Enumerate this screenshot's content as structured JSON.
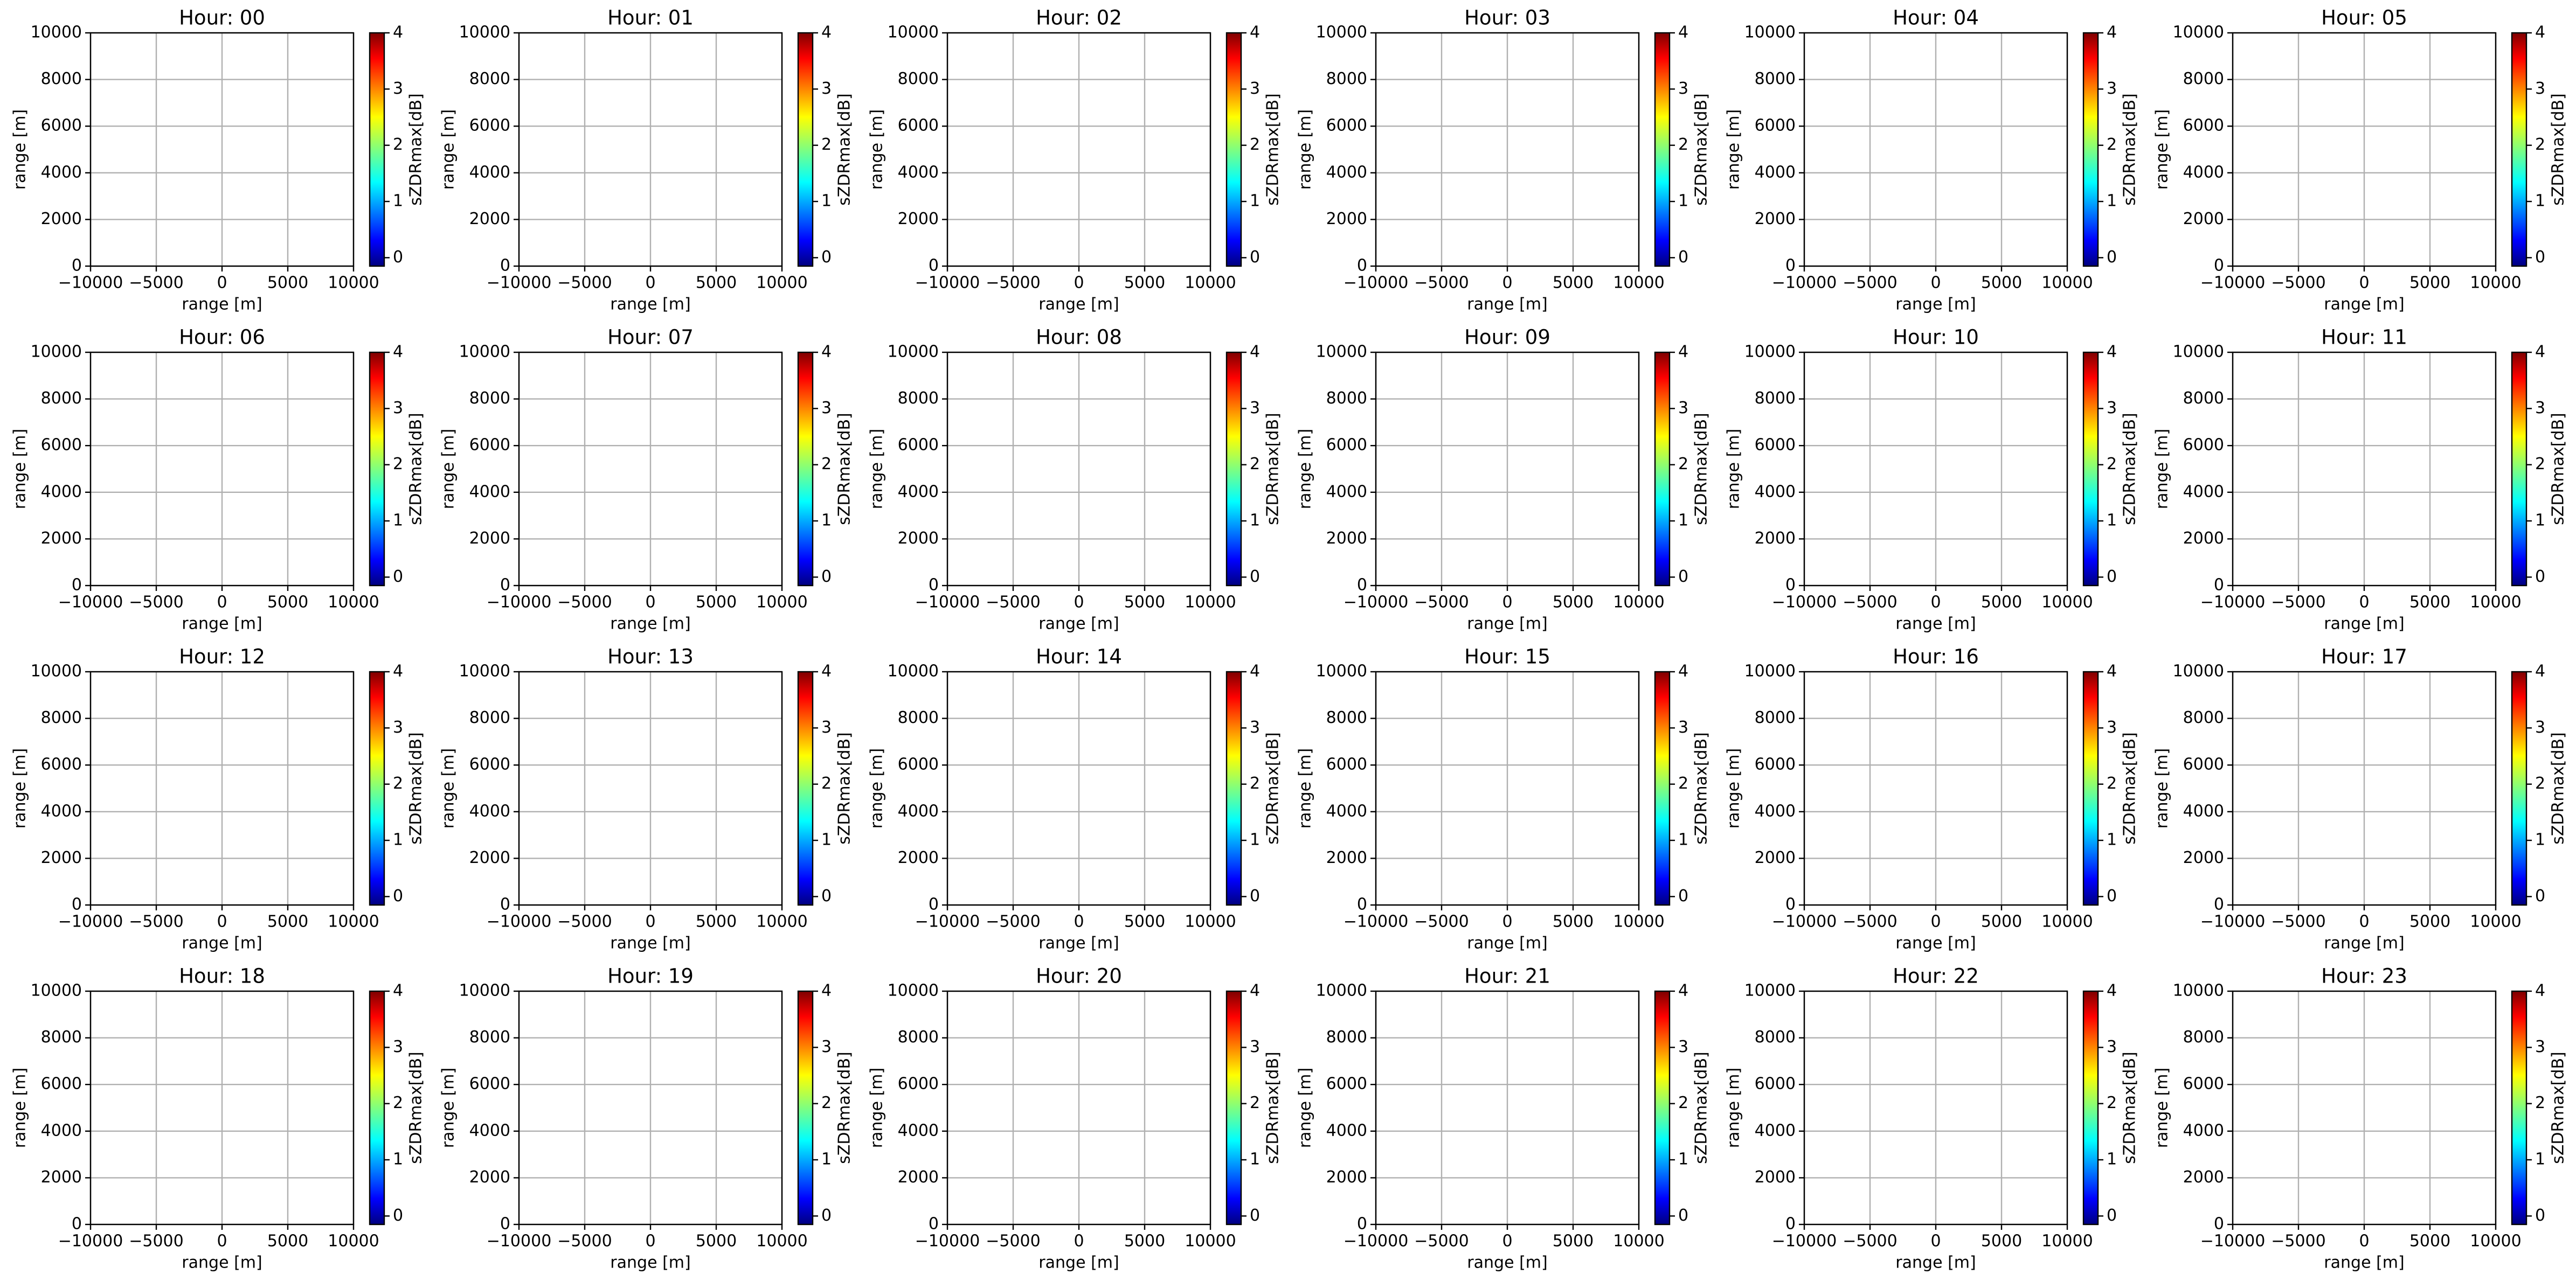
{
  "chart_data": [
    {
      "type": "heatmap",
      "title": "Hour: 00",
      "xlabel": "range [m]",
      "ylabel": "range [m]",
      "xlim": [
        -10000,
        10000
      ],
      "ylim": [
        0,
        10000
      ],
      "xticks": [
        {
          "value": -10000,
          "label": "−10000"
        },
        {
          "value": -5000,
          "label": "−5000"
        },
        0,
        5000,
        10000
      ],
      "yticks": [
        0,
        2000,
        4000,
        6000,
        8000,
        10000
      ],
      "grid": true,
      "colorbar": {
        "label": "sZDRmax[dB]",
        "lim": [
          -0.15,
          4
        ],
        "ticks": [
          0,
          1,
          2,
          3,
          4
        ],
        "colormap": "jet"
      }
    },
    {
      "type": "heatmap",
      "title": "Hour: 01",
      "xlabel": "range [m]",
      "ylabel": "range [m]",
      "xlim": [
        -10000,
        10000
      ],
      "ylim": [
        0,
        10000
      ],
      "xticks": [
        {
          "value": -10000,
          "label": "−10000"
        },
        {
          "value": -5000,
          "label": "−5000"
        },
        0,
        5000,
        10000
      ],
      "yticks": [
        0,
        2000,
        4000,
        6000,
        8000,
        10000
      ],
      "grid": true,
      "colorbar": {
        "label": "sZDRmax[dB]",
        "lim": [
          -0.15,
          4
        ],
        "ticks": [
          0,
          1,
          2,
          3,
          4
        ],
        "colormap": "jet"
      }
    },
    {
      "type": "heatmap",
      "title": "Hour: 02",
      "xlabel": "range [m]",
      "ylabel": "range [m]",
      "xlim": [
        -10000,
        10000
      ],
      "ylim": [
        0,
        10000
      ],
      "xticks": [
        {
          "value": -10000,
          "label": "−10000"
        },
        {
          "value": -5000,
          "label": "−5000"
        },
        0,
        5000,
        10000
      ],
      "yticks": [
        0,
        2000,
        4000,
        6000,
        8000,
        10000
      ],
      "grid": true,
      "colorbar": {
        "label": "sZDRmax[dB]",
        "lim": [
          -0.15,
          4
        ],
        "ticks": [
          0,
          1,
          2,
          3,
          4
        ],
        "colormap": "jet"
      }
    },
    {
      "type": "heatmap",
      "title": "Hour: 03",
      "xlabel": "range [m]",
      "ylabel": "range [m]",
      "xlim": [
        -10000,
        10000
      ],
      "ylim": [
        0,
        10000
      ],
      "xticks": [
        {
          "value": -10000,
          "label": "−10000"
        },
        {
          "value": -5000,
          "label": "−5000"
        },
        0,
        5000,
        10000
      ],
      "yticks": [
        0,
        2000,
        4000,
        6000,
        8000,
        10000
      ],
      "grid": true,
      "colorbar": {
        "label": "sZDRmax[dB]",
        "lim": [
          -0.15,
          4
        ],
        "ticks": [
          0,
          1,
          2,
          3,
          4
        ],
        "colormap": "jet"
      }
    },
    {
      "type": "heatmap",
      "title": "Hour: 04",
      "xlabel": "range [m]",
      "ylabel": "range [m]",
      "xlim": [
        -10000,
        10000
      ],
      "ylim": [
        0,
        10000
      ],
      "xticks": [
        {
          "value": -10000,
          "label": "−10000"
        },
        {
          "value": -5000,
          "label": "−5000"
        },
        0,
        5000,
        10000
      ],
      "yticks": [
        0,
        2000,
        4000,
        6000,
        8000,
        10000
      ],
      "grid": true,
      "colorbar": {
        "label": "sZDRmax[dB]",
        "lim": [
          -0.15,
          4
        ],
        "ticks": [
          0,
          1,
          2,
          3,
          4
        ],
        "colormap": "jet"
      }
    },
    {
      "type": "heatmap",
      "title": "Hour: 05",
      "xlabel": "range [m]",
      "ylabel": "range [m]",
      "xlim": [
        -10000,
        10000
      ],
      "ylim": [
        0,
        10000
      ],
      "xticks": [
        {
          "value": -10000,
          "label": "−10000"
        },
        {
          "value": -5000,
          "label": "−5000"
        },
        0,
        5000,
        10000
      ],
      "yticks": [
        0,
        2000,
        4000,
        6000,
        8000,
        10000
      ],
      "grid": true,
      "colorbar": {
        "label": "sZDRmax[dB]",
        "lim": [
          -0.15,
          4
        ],
        "ticks": [
          0,
          1,
          2,
          3,
          4
        ],
        "colormap": "jet"
      }
    },
    {
      "type": "heatmap",
      "title": "Hour: 06",
      "xlabel": "range [m]",
      "ylabel": "range [m]",
      "xlim": [
        -10000,
        10000
      ],
      "ylim": [
        0,
        10000
      ],
      "xticks": [
        {
          "value": -10000,
          "label": "−10000"
        },
        {
          "value": -5000,
          "label": "−5000"
        },
        0,
        5000,
        10000
      ],
      "yticks": [
        0,
        2000,
        4000,
        6000,
        8000,
        10000
      ],
      "grid": true,
      "colorbar": {
        "label": "sZDRmax[dB]",
        "lim": [
          -0.15,
          4
        ],
        "ticks": [
          0,
          1,
          2,
          3,
          4
        ],
        "colormap": "jet"
      }
    },
    {
      "type": "heatmap",
      "title": "Hour: 07",
      "xlabel": "range [m]",
      "ylabel": "range [m]",
      "xlim": [
        -10000,
        10000
      ],
      "ylim": [
        0,
        10000
      ],
      "xticks": [
        {
          "value": -10000,
          "label": "−10000"
        },
        {
          "value": -5000,
          "label": "−5000"
        },
        0,
        5000,
        10000
      ],
      "yticks": [
        0,
        2000,
        4000,
        6000,
        8000,
        10000
      ],
      "grid": true,
      "colorbar": {
        "label": "sZDRmax[dB]",
        "lim": [
          -0.15,
          4
        ],
        "ticks": [
          0,
          1,
          2,
          3,
          4
        ],
        "colormap": "jet"
      }
    },
    {
      "type": "heatmap",
      "title": "Hour: 08",
      "xlabel": "range [m]",
      "ylabel": "range [m]",
      "xlim": [
        -10000,
        10000
      ],
      "ylim": [
        0,
        10000
      ],
      "xticks": [
        {
          "value": -10000,
          "label": "−10000"
        },
        {
          "value": -5000,
          "label": "−5000"
        },
        0,
        5000,
        10000
      ],
      "yticks": [
        0,
        2000,
        4000,
        6000,
        8000,
        10000
      ],
      "grid": true,
      "colorbar": {
        "label": "sZDRmax[dB]",
        "lim": [
          -0.15,
          4
        ],
        "ticks": [
          0,
          1,
          2,
          3,
          4
        ],
        "colormap": "jet"
      }
    },
    {
      "type": "heatmap",
      "title": "Hour: 09",
      "xlabel": "range [m]",
      "ylabel": "range [m]",
      "xlim": [
        -10000,
        10000
      ],
      "ylim": [
        0,
        10000
      ],
      "xticks": [
        {
          "value": -10000,
          "label": "−10000"
        },
        {
          "value": -5000,
          "label": "−5000"
        },
        0,
        5000,
        10000
      ],
      "yticks": [
        0,
        2000,
        4000,
        6000,
        8000,
        10000
      ],
      "grid": true,
      "colorbar": {
        "label": "sZDRmax[dB]",
        "lim": [
          -0.15,
          4
        ],
        "ticks": [
          0,
          1,
          2,
          3,
          4
        ],
        "colormap": "jet"
      }
    },
    {
      "type": "heatmap",
      "title": "Hour: 10",
      "xlabel": "range [m]",
      "ylabel": "range [m]",
      "xlim": [
        -10000,
        10000
      ],
      "ylim": [
        0,
        10000
      ],
      "xticks": [
        {
          "value": -10000,
          "label": "−10000"
        },
        {
          "value": -5000,
          "label": "−5000"
        },
        0,
        5000,
        10000
      ],
      "yticks": [
        0,
        2000,
        4000,
        6000,
        8000,
        10000
      ],
      "grid": true,
      "colorbar": {
        "label": "sZDRmax[dB]",
        "lim": [
          -0.15,
          4
        ],
        "ticks": [
          0,
          1,
          2,
          3,
          4
        ],
        "colormap": "jet"
      }
    },
    {
      "type": "heatmap",
      "title": "Hour: 11",
      "xlabel": "range [m]",
      "ylabel": "range [m]",
      "xlim": [
        -10000,
        10000
      ],
      "ylim": [
        0,
        10000
      ],
      "xticks": [
        {
          "value": -10000,
          "label": "−10000"
        },
        {
          "value": -5000,
          "label": "−5000"
        },
        0,
        5000,
        10000
      ],
      "yticks": [
        0,
        2000,
        4000,
        6000,
        8000,
        10000
      ],
      "grid": true,
      "colorbar": {
        "label": "sZDRmax[dB]",
        "lim": [
          -0.15,
          4
        ],
        "ticks": [
          0,
          1,
          2,
          3,
          4
        ],
        "colormap": "jet"
      }
    },
    {
      "type": "heatmap",
      "title": "Hour: 12",
      "xlabel": "range [m]",
      "ylabel": "range [m]",
      "xlim": [
        -10000,
        10000
      ],
      "ylim": [
        0,
        10000
      ],
      "xticks": [
        {
          "value": -10000,
          "label": "−10000"
        },
        {
          "value": -5000,
          "label": "−5000"
        },
        0,
        5000,
        10000
      ],
      "yticks": [
        0,
        2000,
        4000,
        6000,
        8000,
        10000
      ],
      "grid": true,
      "colorbar": {
        "label": "sZDRmax[dB]",
        "lim": [
          -0.15,
          4
        ],
        "ticks": [
          0,
          1,
          2,
          3,
          4
        ],
        "colormap": "jet"
      }
    },
    {
      "type": "heatmap",
      "title": "Hour: 13",
      "xlabel": "range [m]",
      "ylabel": "range [m]",
      "xlim": [
        -10000,
        10000
      ],
      "ylim": [
        0,
        10000
      ],
      "xticks": [
        {
          "value": -10000,
          "label": "−10000"
        },
        {
          "value": -5000,
          "label": "−5000"
        },
        0,
        5000,
        10000
      ],
      "yticks": [
        0,
        2000,
        4000,
        6000,
        8000,
        10000
      ],
      "grid": true,
      "colorbar": {
        "label": "sZDRmax[dB]",
        "lim": [
          -0.15,
          4
        ],
        "ticks": [
          0,
          1,
          2,
          3,
          4
        ],
        "colormap": "jet"
      }
    },
    {
      "type": "heatmap",
      "title": "Hour: 14",
      "xlabel": "range [m]",
      "ylabel": "range [m]",
      "xlim": [
        -10000,
        10000
      ],
      "ylim": [
        0,
        10000
      ],
      "xticks": [
        {
          "value": -10000,
          "label": "−10000"
        },
        {
          "value": -5000,
          "label": "−5000"
        },
        0,
        5000,
        10000
      ],
      "yticks": [
        0,
        2000,
        4000,
        6000,
        8000,
        10000
      ],
      "grid": true,
      "colorbar": {
        "label": "sZDRmax[dB]",
        "lim": [
          -0.15,
          4
        ],
        "ticks": [
          0,
          1,
          2,
          3,
          4
        ],
        "colormap": "jet"
      }
    },
    {
      "type": "heatmap",
      "title": "Hour: 15",
      "xlabel": "range [m]",
      "ylabel": "range [m]",
      "xlim": [
        -10000,
        10000
      ],
      "ylim": [
        0,
        10000
      ],
      "xticks": [
        {
          "value": -10000,
          "label": "−10000"
        },
        {
          "value": -5000,
          "label": "−5000"
        },
        0,
        5000,
        10000
      ],
      "yticks": [
        0,
        2000,
        4000,
        6000,
        8000,
        10000
      ],
      "grid": true,
      "colorbar": {
        "label": "sZDRmax[dB]",
        "lim": [
          -0.15,
          4
        ],
        "ticks": [
          0,
          1,
          2,
          3,
          4
        ],
        "colormap": "jet"
      }
    },
    {
      "type": "heatmap",
      "title": "Hour: 16",
      "xlabel": "range [m]",
      "ylabel": "range [m]",
      "xlim": [
        -10000,
        10000
      ],
      "ylim": [
        0,
        10000
      ],
      "xticks": [
        {
          "value": -10000,
          "label": "−10000"
        },
        {
          "value": -5000,
          "label": "−5000"
        },
        0,
        5000,
        10000
      ],
      "yticks": [
        0,
        2000,
        4000,
        6000,
        8000,
        10000
      ],
      "grid": true,
      "colorbar": {
        "label": "sZDRmax[dB]",
        "lim": [
          -0.15,
          4
        ],
        "ticks": [
          0,
          1,
          2,
          3,
          4
        ],
        "colormap": "jet"
      }
    },
    {
      "type": "heatmap",
      "title": "Hour: 17",
      "xlabel": "range [m]",
      "ylabel": "range [m]",
      "xlim": [
        -10000,
        10000
      ],
      "ylim": [
        0,
        10000
      ],
      "xticks": [
        {
          "value": -10000,
          "label": "−10000"
        },
        {
          "value": -5000,
          "label": "−5000"
        },
        0,
        5000,
        10000
      ],
      "yticks": [
        0,
        2000,
        4000,
        6000,
        8000,
        10000
      ],
      "grid": true,
      "colorbar": {
        "label": "sZDRmax[dB]",
        "lim": [
          -0.15,
          4
        ],
        "ticks": [
          0,
          1,
          2,
          3,
          4
        ],
        "colormap": "jet"
      }
    },
    {
      "type": "heatmap",
      "title": "Hour: 18",
      "xlabel": "range [m]",
      "ylabel": "range [m]",
      "xlim": [
        -10000,
        10000
      ],
      "ylim": [
        0,
        10000
      ],
      "xticks": [
        {
          "value": -10000,
          "label": "−10000"
        },
        {
          "value": -5000,
          "label": "−5000"
        },
        0,
        5000,
        10000
      ],
      "yticks": [
        0,
        2000,
        4000,
        6000,
        8000,
        10000
      ],
      "grid": true,
      "colorbar": {
        "label": "sZDRmax[dB]",
        "lim": [
          -0.15,
          4
        ],
        "ticks": [
          0,
          1,
          2,
          3,
          4
        ],
        "colormap": "jet"
      }
    },
    {
      "type": "heatmap",
      "title": "Hour: 19",
      "xlabel": "range [m]",
      "ylabel": "range [m]",
      "xlim": [
        -10000,
        10000
      ],
      "ylim": [
        0,
        10000
      ],
      "xticks": [
        {
          "value": -10000,
          "label": "−10000"
        },
        {
          "value": -5000,
          "label": "−5000"
        },
        0,
        5000,
        10000
      ],
      "yticks": [
        0,
        2000,
        4000,
        6000,
        8000,
        10000
      ],
      "grid": true,
      "colorbar": {
        "label": "sZDRmax[dB]",
        "lim": [
          -0.15,
          4
        ],
        "ticks": [
          0,
          1,
          2,
          3,
          4
        ],
        "colormap": "jet"
      }
    },
    {
      "type": "heatmap",
      "title": "Hour: 20",
      "xlabel": "range [m]",
      "ylabel": "range [m]",
      "xlim": [
        -10000,
        10000
      ],
      "ylim": [
        0,
        10000
      ],
      "xticks": [
        {
          "value": -10000,
          "label": "−10000"
        },
        {
          "value": -5000,
          "label": "−5000"
        },
        0,
        5000,
        10000
      ],
      "yticks": [
        0,
        2000,
        4000,
        6000,
        8000,
        10000
      ],
      "grid": true,
      "colorbar": {
        "label": "sZDRmax[dB]",
        "lim": [
          -0.15,
          4
        ],
        "ticks": [
          0,
          1,
          2,
          3,
          4
        ],
        "colormap": "jet"
      }
    },
    {
      "type": "heatmap",
      "title": "Hour: 21",
      "xlabel": "range [m]",
      "ylabel": "range [m]",
      "xlim": [
        -10000,
        10000
      ],
      "ylim": [
        0,
        10000
      ],
      "xticks": [
        {
          "value": -10000,
          "label": "−10000"
        },
        {
          "value": -5000,
          "label": "−5000"
        },
        0,
        5000,
        10000
      ],
      "yticks": [
        0,
        2000,
        4000,
        6000,
        8000,
        10000
      ],
      "grid": true,
      "colorbar": {
        "label": "sZDRmax[dB]",
        "lim": [
          -0.15,
          4
        ],
        "ticks": [
          0,
          1,
          2,
          3,
          4
        ],
        "colormap": "jet"
      }
    },
    {
      "type": "heatmap",
      "title": "Hour: 22",
      "xlabel": "range [m]",
      "ylabel": "range [m]",
      "xlim": [
        -10000,
        10000
      ],
      "ylim": [
        0,
        10000
      ],
      "xticks": [
        {
          "value": -10000,
          "label": "−10000"
        },
        {
          "value": -5000,
          "label": "−5000"
        },
        0,
        5000,
        10000
      ],
      "yticks": [
        0,
        2000,
        4000,
        6000,
        8000,
        10000
      ],
      "grid": true,
      "colorbar": {
        "label": "sZDRmax[dB]",
        "lim": [
          -0.15,
          4
        ],
        "ticks": [
          0,
          1,
          2,
          3,
          4
        ],
        "colormap": "jet"
      }
    },
    {
      "type": "heatmap",
      "title": "Hour: 23",
      "xlabel": "range [m]",
      "ylabel": "range [m]",
      "xlim": [
        -10000,
        10000
      ],
      "ylim": [
        0,
        10000
      ],
      "xticks": [
        {
          "value": -10000,
          "label": "−10000"
        },
        {
          "value": -5000,
          "label": "−5000"
        },
        0,
        5000,
        10000
      ],
      "yticks": [
        0,
        2000,
        4000,
        6000,
        8000,
        10000
      ],
      "grid": true,
      "colorbar": {
        "label": "sZDRmax[dB]",
        "lim": [
          -0.15,
          4
        ],
        "ticks": [
          0,
          1,
          2,
          3,
          4
        ],
        "colormap": "jet"
      }
    }
  ]
}
